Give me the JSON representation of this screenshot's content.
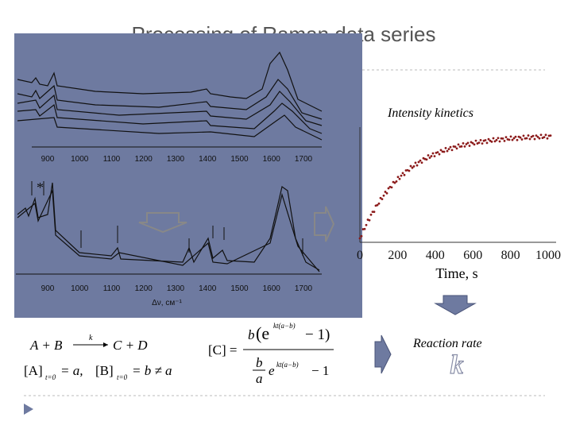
{
  "title": "Processing of Raman data series",
  "spectra": {
    "xticks_top": [
      "900",
      "1000",
      "1100",
      "1200",
      "1300",
      "1400",
      "1500",
      "1600",
      "1700"
    ],
    "xticks_bottom": [
      "900",
      "1000",
      "1100",
      "1200",
      "1300",
      "1400",
      "1500",
      "1600",
      "1700"
    ],
    "xlabel": "Δν, см⁻¹",
    "marker": "*"
  },
  "kinetics": {
    "title": "Intensity kinetics",
    "xlabel": "Time, s",
    "xticks": [
      "0",
      "200",
      "400",
      "600",
      "800",
      "1000"
    ]
  },
  "reaction_rate": {
    "label": "Reaction rate",
    "symbol": "k"
  },
  "equations": {
    "reaction": {
      "left": "A + B",
      "rate": "k",
      "right": "C + D"
    },
    "initial": {
      "a_bracket": "[A]",
      "a_sub": "t=0",
      "a_value": "= a,",
      "b_bracket": "[B]",
      "b_sub": "t=0",
      "b_value": "= b ≠ a"
    },
    "solution": {
      "lhs": "[C] =",
      "num_b": "b",
      "num_e": "(e",
      "exp": "kt(a−b)",
      "num_tail": "− 1)",
      "den_b": "b",
      "den_a": "a",
      "den_e": "e",
      "den_exp": "kt(a−b)",
      "den_tail": "− 1"
    }
  }
}
